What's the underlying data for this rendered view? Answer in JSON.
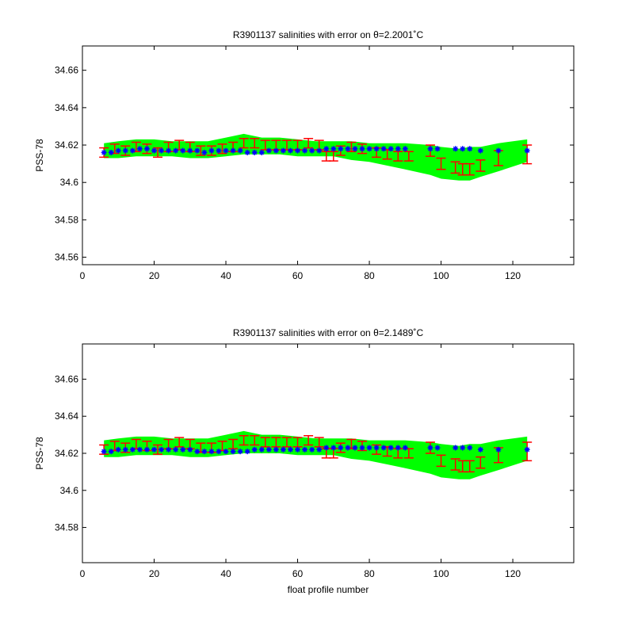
{
  "figure": {
    "background": "#ffffff",
    "colors": {
      "envelope": "#00ff00",
      "measured": "#ff0000",
      "calibrated": "#0000ff",
      "axes": "#000000"
    }
  },
  "chart_data": [
    {
      "type": "scatter",
      "title": "R3901137 salinities with error on θ=2.2001˚C",
      "xlabel": "",
      "ylabel": "PSS-78",
      "xlim": [
        0,
        137
      ],
      "ylim": [
        34.556,
        34.673
      ],
      "xticks": [
        0,
        20,
        40,
        60,
        80,
        100,
        120
      ],
      "xtick_labels": [
        "0",
        "20",
        "40",
        "60",
        "80",
        "100",
        "120"
      ],
      "yticks": [
        34.56,
        34.58,
        34.6,
        34.62,
        34.64,
        34.66
      ],
      "ytick_labels": [
        "34.56",
        "34.58",
        "34.6",
        "34.62",
        "34.64",
        "34.66"
      ],
      "grid": false,
      "legend": "none",
      "envelope": {
        "x": [
          6,
          10,
          15,
          20,
          25,
          30,
          35,
          40,
          45,
          50,
          55,
          60,
          65,
          70,
          75,
          80,
          85,
          90,
          97,
          100,
          105,
          108,
          111,
          116,
          124
        ],
        "lower": [
          34.613,
          34.613,
          34.614,
          34.614,
          34.614,
          34.613,
          34.613,
          34.614,
          34.615,
          34.615,
          34.615,
          34.614,
          34.614,
          34.614,
          34.612,
          34.611,
          34.609,
          34.607,
          34.604,
          34.602,
          34.601,
          34.601,
          34.603,
          34.606,
          34.611
        ],
        "upper": [
          34.621,
          34.622,
          34.623,
          34.623,
          34.622,
          34.622,
          34.622,
          34.624,
          34.626,
          34.624,
          34.624,
          34.623,
          34.622,
          34.622,
          34.622,
          34.621,
          34.621,
          34.621,
          34.62,
          34.619,
          34.618,
          34.619,
          34.619,
          34.621,
          34.623
        ]
      },
      "series": [
        {
          "marker": "errorbar",
          "color": "#ff0000",
          "x": [
            6,
            9,
            12,
            15,
            18,
            21,
            24,
            27,
            30,
            33,
            36,
            39,
            42,
            45,
            48,
            51,
            54,
            57,
            60,
            63,
            66,
            68,
            70,
            72,
            75,
            78,
            82,
            85,
            88,
            91,
            97,
            100,
            104,
            106,
            108,
            111,
            116,
            124
          ],
          "y": [
            34.616,
            34.618,
            34.617,
            34.619,
            34.618,
            34.616,
            34.619,
            34.62,
            34.619,
            34.617,
            34.617,
            34.618,
            34.619,
            34.621,
            34.621,
            34.62,
            34.62,
            34.62,
            34.62,
            34.621,
            34.62,
            34.614,
            34.614,
            34.617,
            34.619,
            34.618,
            34.616,
            34.615,
            34.614,
            34.614,
            34.617,
            34.61,
            34.608,
            34.607,
            34.607,
            34.609,
            34.613,
            34.615
          ],
          "err": [
            0.0025,
            0.0025,
            0.0025,
            0.0025,
            0.0025,
            0.0025,
            0.0025,
            0.0025,
            0.0025,
            0.0025,
            0.0025,
            0.0025,
            0.0025,
            0.0025,
            0.0025,
            0.0025,
            0.0025,
            0.0025,
            0.0025,
            0.0025,
            0.0025,
            0.0025,
            0.0025,
            0.0025,
            0.0025,
            0.0025,
            0.0025,
            0.0025,
            0.0025,
            0.0025,
            0.003,
            0.003,
            0.003,
            0.003,
            0.003,
            0.003,
            0.004,
            0.005
          ]
        },
        {
          "marker": "star",
          "color": "#0000ff",
          "x": [
            6,
            8,
            10,
            12,
            14,
            16,
            18,
            20,
            22,
            24,
            26,
            28,
            30,
            32,
            34,
            36,
            38,
            40,
            42,
            44,
            46,
            48,
            50,
            52,
            54,
            56,
            58,
            60,
            62,
            64,
            66,
            68,
            70,
            72,
            74,
            76,
            78,
            80,
            82,
            84,
            86,
            88,
            90,
            97,
            99,
            104,
            106,
            108,
            111,
            116,
            124
          ],
          "y": [
            34.616,
            34.616,
            34.617,
            34.617,
            34.617,
            34.618,
            34.618,
            34.617,
            34.617,
            34.617,
            34.617,
            34.617,
            34.617,
            34.617,
            34.616,
            34.617,
            34.617,
            34.617,
            34.617,
            34.617,
            34.616,
            34.616,
            34.616,
            34.617,
            34.617,
            34.617,
            34.617,
            34.617,
            34.617,
            34.617,
            34.617,
            34.618,
            34.618,
            34.618,
            34.618,
            34.618,
            34.618,
            34.618,
            34.618,
            34.618,
            34.618,
            34.618,
            34.618,
            34.618,
            34.618,
            34.618,
            34.618,
            34.618,
            34.617,
            34.617,
            34.617
          ]
        }
      ]
    },
    {
      "type": "scatter",
      "title": "R3901137 salinities with error on θ=2.1489˚C",
      "xlabel": "float profile number",
      "ylabel": "PSS-78",
      "xlim": [
        0,
        137
      ],
      "ylim": [
        34.561,
        34.679
      ],
      "xticks": [
        0,
        20,
        40,
        60,
        80,
        100,
        120
      ],
      "xtick_labels": [
        "0",
        "20",
        "40",
        "60",
        "80",
        "100",
        "120"
      ],
      "yticks": [
        34.58,
        34.6,
        34.62,
        34.64,
        34.66
      ],
      "ytick_labels": [
        "34.58",
        "34.6",
        "34.62",
        "34.64",
        "34.66"
      ],
      "grid": false,
      "legend": "none",
      "envelope": {
        "x": [
          6,
          10,
          15,
          20,
          25,
          30,
          35,
          40,
          45,
          50,
          55,
          60,
          65,
          70,
          75,
          80,
          85,
          90,
          97,
          100,
          105,
          108,
          111,
          116,
          124
        ],
        "lower": [
          34.618,
          34.618,
          34.619,
          34.619,
          34.619,
          34.618,
          34.618,
          34.619,
          34.62,
          34.62,
          34.62,
          34.619,
          34.619,
          34.619,
          34.617,
          34.616,
          34.614,
          34.612,
          34.609,
          34.607,
          34.606,
          34.606,
          34.608,
          34.611,
          34.616
        ],
        "upper": [
          34.627,
          34.628,
          34.629,
          34.629,
          34.628,
          34.628,
          34.628,
          34.63,
          34.632,
          34.63,
          34.63,
          34.629,
          34.628,
          34.628,
          34.628,
          34.627,
          34.627,
          34.627,
          34.626,
          34.625,
          34.624,
          34.625,
          34.625,
          34.627,
          34.629
        ]
      },
      "series": [
        {
          "marker": "errorbar",
          "color": "#ff0000",
          "x": [
            6,
            9,
            12,
            15,
            18,
            21,
            24,
            27,
            30,
            33,
            36,
            39,
            42,
            45,
            48,
            51,
            54,
            57,
            60,
            63,
            66,
            68,
            70,
            72,
            75,
            78,
            82,
            85,
            88,
            91,
            97,
            100,
            104,
            106,
            108,
            111,
            116,
            124
          ],
          "y": [
            34.622,
            34.624,
            34.623,
            34.625,
            34.624,
            34.622,
            34.625,
            34.626,
            34.625,
            34.623,
            34.623,
            34.624,
            34.625,
            34.627,
            34.627,
            34.626,
            34.626,
            34.626,
            34.626,
            34.627,
            34.626,
            34.62,
            34.62,
            34.623,
            34.625,
            34.624,
            34.622,
            34.621,
            34.62,
            34.62,
            34.623,
            34.616,
            34.614,
            34.613,
            34.613,
            34.615,
            34.619,
            34.621
          ],
          "err": [
            0.0025,
            0.0025,
            0.0025,
            0.0025,
            0.0025,
            0.0025,
            0.0025,
            0.0025,
            0.0025,
            0.0025,
            0.0025,
            0.0025,
            0.0025,
            0.0025,
            0.0025,
            0.0025,
            0.0025,
            0.0025,
            0.0025,
            0.0025,
            0.0025,
            0.0025,
            0.0025,
            0.0025,
            0.0025,
            0.0025,
            0.0025,
            0.0025,
            0.0025,
            0.0025,
            0.003,
            0.003,
            0.003,
            0.003,
            0.003,
            0.003,
            0.004,
            0.005
          ]
        },
        {
          "marker": "star",
          "color": "#0000ff",
          "x": [
            6,
            8,
            10,
            12,
            14,
            16,
            18,
            20,
            22,
            24,
            26,
            28,
            30,
            32,
            34,
            36,
            38,
            40,
            42,
            44,
            46,
            48,
            50,
            52,
            54,
            56,
            58,
            60,
            62,
            64,
            66,
            68,
            70,
            72,
            74,
            76,
            78,
            80,
            82,
            84,
            86,
            88,
            90,
            97,
            99,
            104,
            106,
            108,
            111,
            116,
            124
          ],
          "y": [
            34.621,
            34.621,
            34.622,
            34.622,
            34.622,
            34.622,
            34.622,
            34.622,
            34.622,
            34.622,
            34.622,
            34.622,
            34.622,
            34.621,
            34.621,
            34.621,
            34.621,
            34.621,
            34.621,
            34.621,
            34.621,
            34.622,
            34.622,
            34.622,
            34.622,
            34.622,
            34.622,
            34.622,
            34.622,
            34.622,
            34.622,
            34.623,
            34.623,
            34.623,
            34.623,
            34.623,
            34.623,
            34.623,
            34.623,
            34.623,
            34.623,
            34.623,
            34.623,
            34.623,
            34.623,
            34.623,
            34.623,
            34.623,
            34.622,
            34.622,
            34.622
          ]
        }
      ]
    }
  ]
}
